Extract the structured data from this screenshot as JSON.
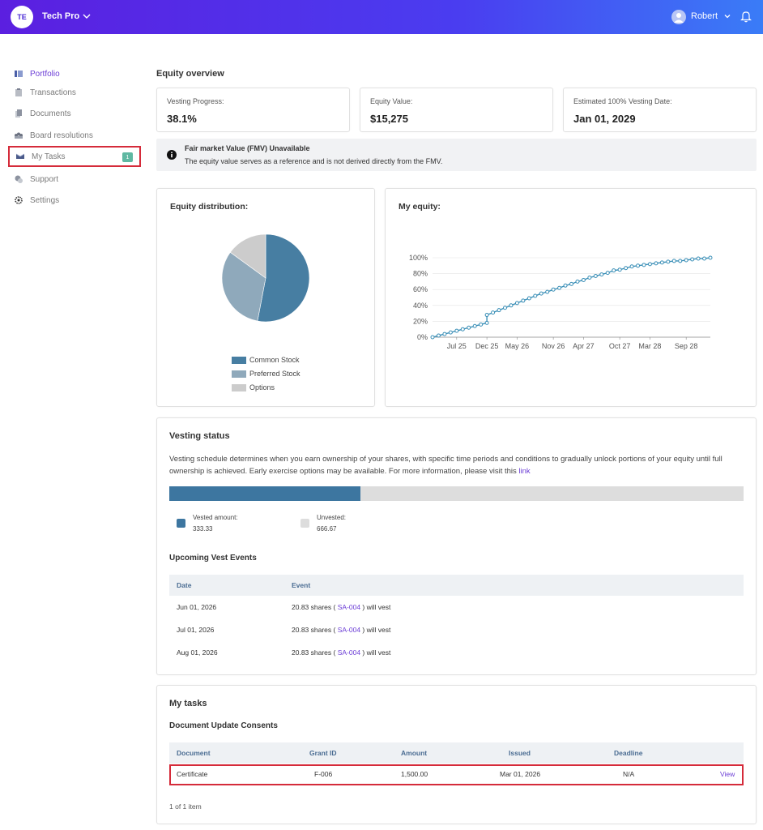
{
  "header": {
    "logo_initials": "TE",
    "org_name": "Tech Pro",
    "user_name": "Robert",
    "brand_gradient": [
      "#5b1fe0",
      "#3a7cf7"
    ]
  },
  "sidebar": {
    "items": [
      {
        "label": "Portfolio",
        "icon": "portfolio-icon",
        "active": true
      },
      {
        "label": "Transactions",
        "icon": "clipboard-icon"
      },
      {
        "label": "Documents",
        "icon": "documents-icon"
      },
      {
        "label": "Board resolutions",
        "icon": "board-icon"
      },
      {
        "label": "My Tasks",
        "icon": "tasks-icon",
        "badge": "1"
      },
      {
        "label": "Support",
        "icon": "support-icon"
      },
      {
        "label": "Settings",
        "icon": "gear-icon"
      }
    ]
  },
  "overview": {
    "title": "Equity overview",
    "cards": [
      {
        "label": "Vesting Progress:",
        "value": "38.1%"
      },
      {
        "label": "Equity Value:",
        "value": "$15,275"
      },
      {
        "label": "Estimated 100% Vesting Date:",
        "value": "Jan 01, 2029"
      }
    ],
    "notice": {
      "title": "Fair market Value (FMV) Unavailable",
      "text": "The equity value serves as a reference and is not derived directly from the FMV."
    }
  },
  "distribution": {
    "title": "Equity distribution:"
  },
  "my_equity": {
    "title": "My equity:"
  },
  "chart_data": [
    {
      "type": "pie",
      "title": "Equity distribution:",
      "labels": [
        "Common Stock",
        "Preferred Stock",
        "Options"
      ],
      "values": [
        53,
        32,
        15
      ],
      "colors": [
        "#477ea2",
        "#8fa9bb",
        "#cccccc"
      ],
      "legend": "bottom"
    },
    {
      "type": "line",
      "title": "My equity:",
      "xlabel": "",
      "ylabel": "",
      "x_ticks": [
        "Jul 25",
        "Dec 25",
        "May 26",
        "Nov 26",
        "Apr 27",
        "Oct 27",
        "Mar 28",
        "Sep 28"
      ],
      "y_ticks": [
        "0%",
        "20%",
        "40%",
        "60%",
        "80%",
        "100%"
      ],
      "ylim": [
        0,
        100
      ],
      "grid": true,
      "series": [
        {
          "color": "#3a8fb7",
          "x": [
            "2025-03",
            "2025-04",
            "2025-05",
            "2025-06",
            "2025-07",
            "2025-08",
            "2025-09",
            "2025-10",
            "2025-11",
            "2025-12",
            "2025-12",
            "2026-01",
            "2026-02",
            "2026-03",
            "2026-04",
            "2026-05",
            "2026-06",
            "2026-07",
            "2026-08",
            "2026-09",
            "2026-10",
            "2026-11",
            "2026-12",
            "2027-01",
            "2027-02",
            "2027-03",
            "2027-04",
            "2027-05",
            "2027-06",
            "2027-07",
            "2027-08",
            "2027-09",
            "2027-10",
            "2027-11",
            "2027-12",
            "2028-01",
            "2028-02",
            "2028-03",
            "2028-04",
            "2028-05",
            "2028-06",
            "2028-07",
            "2028-08",
            "2028-09",
            "2028-10",
            "2028-11",
            "2028-12",
            "2029-01"
          ],
          "values": [
            0,
            2,
            4,
            6,
            8,
            10,
            12,
            14,
            16,
            18,
            28,
            31,
            34,
            37,
            40,
            43,
            46,
            49,
            52,
            55,
            57,
            60,
            62,
            65,
            67,
            70,
            72,
            75,
            77,
            79,
            81,
            84,
            85,
            87,
            89,
            90,
            91,
            92,
            93,
            94,
            95,
            96,
            96,
            97,
            98,
            99,
            99,
            100
          ]
        }
      ]
    }
  ],
  "vesting": {
    "title": "Vesting status",
    "description": "Vesting schedule determines when you earn ownership of your shares, with specific time periods and conditions to gradually unlock portions of your equity until full ownership is achieved. Early exercise options may be available. For more information, please visit this",
    "link_text": "link",
    "vested_fraction": 0.333,
    "vested_label": "Vested amount:",
    "vested_value": "333.33",
    "unvested_label": "Unvested:",
    "unvested_value": "666.67",
    "vested_color": "#3d76a0",
    "unvested_color": "#dddddd",
    "upcoming_title": "Upcoming Vest Events",
    "columns": [
      "Date",
      "Event"
    ],
    "rows": [
      {
        "date": "Jun 01, 2026",
        "pre": "20.83 shares ( ",
        "grant": "SA-004",
        "post": " ) will vest"
      },
      {
        "date": "Jul 01, 2026",
        "pre": "20.83 shares ( ",
        "grant": "SA-004",
        "post": " ) will vest"
      },
      {
        "date": "Aug 01, 2026",
        "pre": "20.83 shares ( ",
        "grant": "SA-004",
        "post": " ) will vest"
      }
    ]
  },
  "tasks": {
    "title": "My tasks",
    "subtitle": "Document Update Consents",
    "columns": [
      "Document",
      "Grant ID",
      "Amount",
      "Issued",
      "Deadline"
    ],
    "rows": [
      {
        "document": "Certificate",
        "grant_id": "F-006",
        "amount": "1,500.00",
        "issued": "Mar 01, 2026",
        "deadline": "N/A",
        "action": "View"
      }
    ],
    "pagination": "1 of 1 item"
  }
}
